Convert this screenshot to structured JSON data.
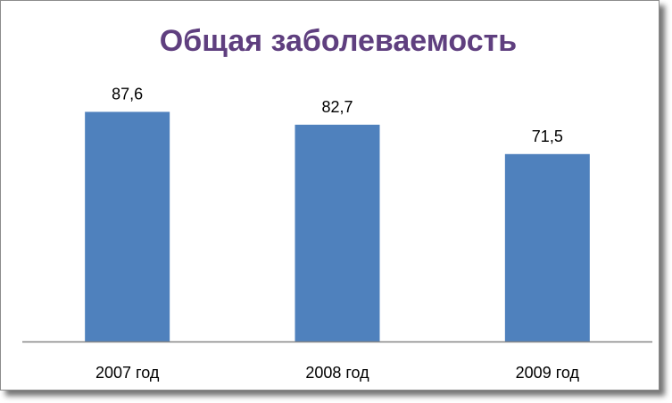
{
  "chart_data": {
    "type": "bar",
    "title": "Общая заболеваемость",
    "categories": [
      "2007 год",
      "2008 год",
      "2009 год"
    ],
    "values": [
      87.6,
      82.7,
      71.5
    ],
    "data_labels": [
      "87,6",
      "82,7",
      "71,5"
    ],
    "ylim": [
      0,
      100
    ],
    "grid": false,
    "legend": "none",
    "colors": {
      "bar": "#4f81bd",
      "title": "#5f3f7f",
      "axis": "#868686"
    }
  }
}
